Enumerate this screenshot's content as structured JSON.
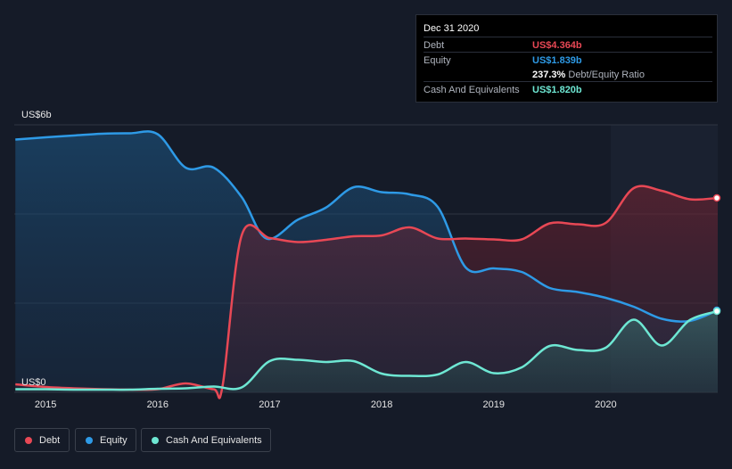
{
  "colors": {
    "background": "#151b28",
    "debt": "#e84855",
    "equity": "#2e9ae6",
    "cash": "#6ee7d3",
    "grid": "#2f3542"
  },
  "tooltip": {
    "date": "Dec 31 2020",
    "debt_label": "Debt",
    "debt_value": "US$4.364b",
    "equity_label": "Equity",
    "equity_value": "US$1.839b",
    "ratio_value": "237.3%",
    "ratio_label": "Debt/Equity Ratio",
    "cash_label": "Cash And Equivalents",
    "cash_value": "US$1.820b"
  },
  "legend": {
    "debt": "Debt",
    "equity": "Equity",
    "cash": "Cash And Equivalents"
  },
  "chart_data": {
    "type": "area",
    "y_top_label": "US$6b",
    "y_bottom_label": "US$0",
    "ylim": [
      0,
      6
    ],
    "xlim": [
      2014.72,
      2021.0
    ],
    "x_ticks": [
      {
        "value": 2015.0,
        "label": "2015"
      },
      {
        "value": 2016.0,
        "label": "2016"
      },
      {
        "value": 2017.0,
        "label": "2017"
      },
      {
        "value": 2018.0,
        "label": "2018"
      },
      {
        "value": 2019.0,
        "label": "2019"
      },
      {
        "value": 2020.0,
        "label": "2020"
      }
    ],
    "grid": true,
    "series": [
      {
        "name": "Equity",
        "color": "#2e9ae6",
        "points": [
          [
            2014.73,
            5.67
          ],
          [
            2015.0,
            5.72
          ],
          [
            2015.25,
            5.76
          ],
          [
            2015.5,
            5.8
          ],
          [
            2015.75,
            5.81
          ],
          [
            2016.0,
            5.79
          ],
          [
            2016.25,
            5.04
          ],
          [
            2016.5,
            5.04
          ],
          [
            2016.75,
            4.38
          ],
          [
            2016.97,
            3.45
          ],
          [
            2017.25,
            3.87
          ],
          [
            2017.5,
            4.14
          ],
          [
            2017.75,
            4.6
          ],
          [
            2018.0,
            4.49
          ],
          [
            2018.25,
            4.44
          ],
          [
            2018.5,
            4.16
          ],
          [
            2018.75,
            2.8
          ],
          [
            2019.0,
            2.78
          ],
          [
            2019.25,
            2.7
          ],
          [
            2019.5,
            2.34
          ],
          [
            2019.75,
            2.25
          ],
          [
            2020.0,
            2.12
          ],
          [
            2020.25,
            1.92
          ],
          [
            2020.5,
            1.65
          ],
          [
            2020.75,
            1.6
          ],
          [
            2021.0,
            1.84
          ]
        ]
      },
      {
        "name": "Debt",
        "color": "#e84855",
        "points": [
          [
            2014.73,
            0.18
          ],
          [
            2015.0,
            0.12
          ],
          [
            2015.25,
            0.09
          ],
          [
            2015.5,
            0.07
          ],
          [
            2015.75,
            0.06
          ],
          [
            2016.0,
            0.07
          ],
          [
            2016.25,
            0.2
          ],
          [
            2016.5,
            0.07
          ],
          [
            2016.58,
            0.15
          ],
          [
            2016.75,
            3.52
          ],
          [
            2017.0,
            3.46
          ],
          [
            2017.25,
            3.37
          ],
          [
            2017.5,
            3.42
          ],
          [
            2017.75,
            3.5
          ],
          [
            2018.0,
            3.52
          ],
          [
            2018.25,
            3.7
          ],
          [
            2018.5,
            3.45
          ],
          [
            2018.75,
            3.45
          ],
          [
            2019.0,
            3.43
          ],
          [
            2019.25,
            3.43
          ],
          [
            2019.5,
            3.79
          ],
          [
            2019.75,
            3.77
          ],
          [
            2020.0,
            3.8
          ],
          [
            2020.25,
            4.58
          ],
          [
            2020.5,
            4.52
          ],
          [
            2020.75,
            4.33
          ],
          [
            2021.0,
            4.36
          ]
        ]
      },
      {
        "name": "Cash And Equivalents",
        "color": "#6ee7d3",
        "points": [
          [
            2014.73,
            0.07
          ],
          [
            2015.0,
            0.07
          ],
          [
            2015.25,
            0.06
          ],
          [
            2015.5,
            0.06
          ],
          [
            2015.75,
            0.06
          ],
          [
            2016.0,
            0.08
          ],
          [
            2016.25,
            0.09
          ],
          [
            2016.5,
            0.13
          ],
          [
            2016.75,
            0.11
          ],
          [
            2017.0,
            0.7
          ],
          [
            2017.25,
            0.73
          ],
          [
            2017.5,
            0.68
          ],
          [
            2017.75,
            0.7
          ],
          [
            2018.0,
            0.42
          ],
          [
            2018.25,
            0.37
          ],
          [
            2018.5,
            0.4
          ],
          [
            2018.75,
            0.68
          ],
          [
            2019.0,
            0.43
          ],
          [
            2019.25,
            0.56
          ],
          [
            2019.5,
            1.04
          ],
          [
            2019.75,
            0.95
          ],
          [
            2020.0,
            1.0
          ],
          [
            2020.25,
            1.63
          ],
          [
            2020.5,
            1.05
          ],
          [
            2020.75,
            1.62
          ],
          [
            2021.0,
            1.82
          ]
        ]
      }
    ]
  }
}
